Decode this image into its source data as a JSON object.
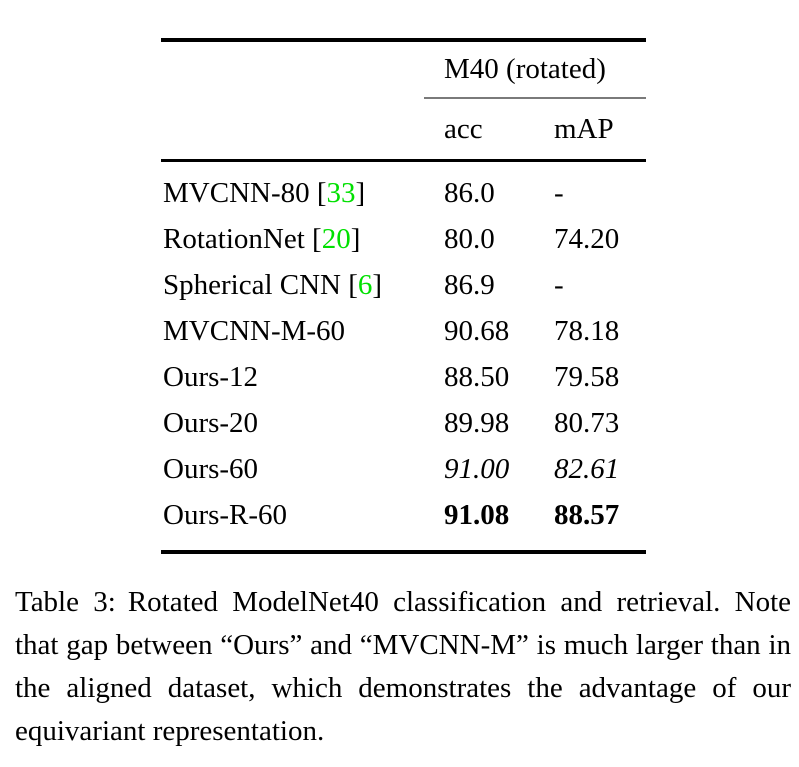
{
  "table": {
    "header": {
      "group": "M40 (rotated)",
      "columns": [
        "acc",
        "mAP"
      ]
    },
    "rows": [
      {
        "method": "MVCNN-80",
        "cite": "33",
        "acc": "86.0",
        "map": "-",
        "style": "normal"
      },
      {
        "method": "RotationNet",
        "cite": "20",
        "acc": "80.0",
        "map": "74.20",
        "style": "normal"
      },
      {
        "method": "Spherical CNN",
        "cite": "6",
        "acc": "86.9",
        "map": "-",
        "style": "normal"
      },
      {
        "method": "MVCNN-M-60",
        "cite": "",
        "acc": "90.68",
        "map": "78.18",
        "style": "normal"
      },
      {
        "method": "Ours-12",
        "cite": "",
        "acc": "88.50",
        "map": "79.58",
        "style": "normal"
      },
      {
        "method": "Ours-20",
        "cite": "",
        "acc": "89.98",
        "map": "80.73",
        "style": "normal"
      },
      {
        "method": "Ours-60",
        "cite": "",
        "acc": "91.00",
        "map": "82.61",
        "style": "italic"
      },
      {
        "method": "Ours-R-60",
        "cite": "",
        "acc": "91.08",
        "map": "88.57",
        "style": "bold"
      }
    ],
    "bracket_open": "[",
    "bracket_close": "]"
  },
  "caption": {
    "label": "Table 3:",
    "text": "Rotated ModelNet40 classification and retrieval. Note that gap between “Ours” and “MVCNN-M” is much larger than in the aligned dataset, which demonstrates the advantage of our equivariant representation."
  },
  "colors": {
    "citation_green": "#00e000",
    "text": "#000000",
    "rule": "#000000",
    "cmidrule_gray": "#7a7a7a"
  }
}
